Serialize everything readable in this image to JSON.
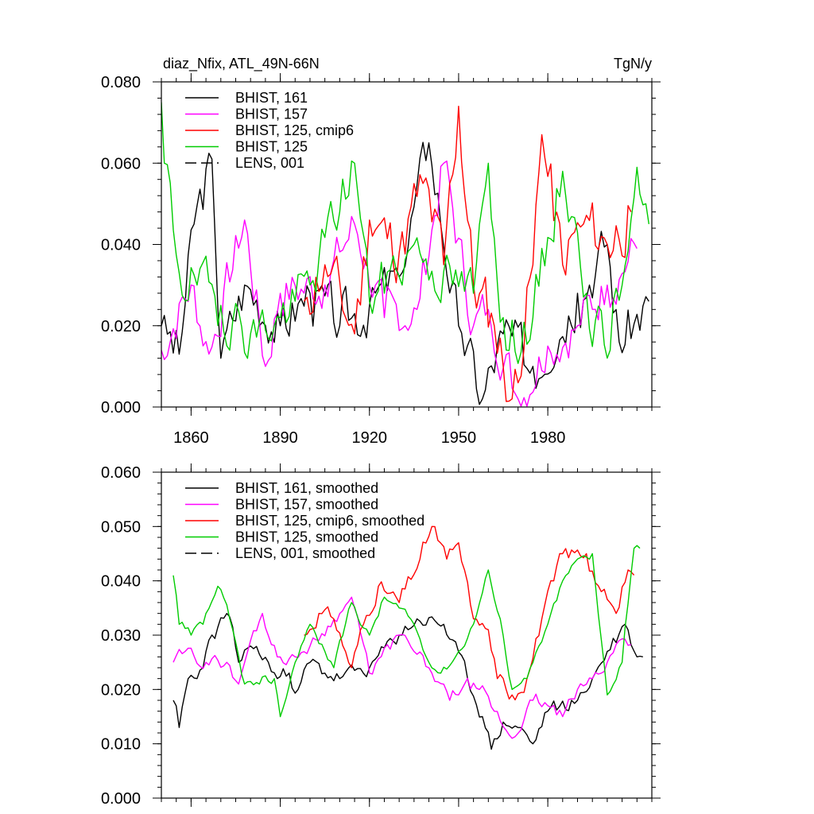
{
  "chart_data": [
    {
      "type": "line",
      "title": "diaz_Nfix, ATL_49N-66N",
      "units": "TgN/y",
      "xlabel": "",
      "ylabel": "",
      "xlim": [
        1850,
        2015
      ],
      "ylim": [
        0.0,
        0.08
      ],
      "x_ticks": [
        1860,
        1890,
        1920,
        1950,
        1980
      ],
      "x_tick_labels": [
        "1860",
        "1890",
        "1920",
        "1950",
        "1980"
      ],
      "y_ticks": [
        0.0,
        0.02,
        0.04,
        0.06,
        0.08
      ],
      "y_tick_labels": [
        "0.000",
        "0.020",
        "0.040",
        "0.060",
        "0.080"
      ],
      "legend_position": "top-left",
      "series": [
        {
          "name": "BHIST, 161",
          "color": "#000000",
          "dash": "solid",
          "x_start": 1850,
          "x_end": 2014,
          "base": 0.022,
          "amplitude": 0.011,
          "seed": 3,
          "anchors": [
            [
              1850,
              0.02
            ],
            [
              1856,
              0.013
            ],
            [
              1861,
              0.045
            ],
            [
              1867,
              0.061
            ],
            [
              1870,
              0.012
            ],
            [
              1878,
              0.03
            ],
            [
              1890,
              0.02
            ],
            [
              1900,
              0.028
            ],
            [
              1910,
              0.02
            ],
            [
              1920,
              0.025
            ],
            [
              1930,
              0.032
            ],
            [
              1940,
              0.065
            ],
            [
              1950,
              0.02
            ],
            [
              1958,
              0.002
            ],
            [
              1965,
              0.018
            ],
            [
              1975,
              0.01
            ],
            [
              1990,
              0.028
            ],
            [
              2000,
              0.04
            ],
            [
              2004,
              0.016
            ],
            [
              2014,
              0.026
            ]
          ]
        },
        {
          "name": "BHIST, 157",
          "color": "#ff00ff",
          "dash": "solid",
          "x_start": 1850,
          "x_end": 2010,
          "base": 0.026,
          "amplitude": 0.01,
          "seed": 7,
          "anchors": [
            [
              1850,
              0.014
            ],
            [
              1860,
              0.03
            ],
            [
              1866,
              0.013
            ],
            [
              1878,
              0.046
            ],
            [
              1885,
              0.01
            ],
            [
              1890,
              0.028
            ],
            [
              1905,
              0.03
            ],
            [
              1915,
              0.045
            ],
            [
              1925,
              0.022
            ],
            [
              1936,
              0.024
            ],
            [
              1945,
              0.06
            ],
            [
              1955,
              0.02
            ],
            [
              1960,
              0.024
            ],
            [
              1970,
              0.002
            ],
            [
              1980,
              0.015
            ],
            [
              1990,
              0.02
            ],
            [
              2000,
              0.03
            ],
            [
              2010,
              0.039
            ]
          ]
        },
        {
          "name": "BHIST, 125, cmip6",
          "color": "#ff0000",
          "dash": "solid",
          "x_start": 1898,
          "x_end": 2008,
          "base": 0.032,
          "amplitude": 0.013,
          "seed": 11,
          "anchors": [
            [
              1898,
              0.026
            ],
            [
              1905,
              0.035
            ],
            [
              1915,
              0.018
            ],
            [
              1920,
              0.046
            ],
            [
              1930,
              0.038
            ],
            [
              1938,
              0.055
            ],
            [
              1945,
              0.035
            ],
            [
              1950,
              0.074
            ],
            [
              1955,
              0.03
            ],
            [
              1962,
              0.02
            ],
            [
              1968,
              0.002
            ],
            [
              1975,
              0.035
            ],
            [
              1978,
              0.067
            ],
            [
              1985,
              0.035
            ],
            [
              1992,
              0.045
            ],
            [
              2000,
              0.04
            ],
            [
              2008,
              0.048
            ]
          ]
        },
        {
          "name": "BHIST, 125",
          "color": "#00cc00",
          "dash": "solid",
          "x_start": 1850,
          "x_end": 2014,
          "base": 0.028,
          "amplitude": 0.011,
          "seed": 19,
          "anchors": [
            [
              1850,
              0.075
            ],
            [
              1851,
              0.06
            ],
            [
              1856,
              0.033
            ],
            [
              1862,
              0.03
            ],
            [
              1870,
              0.025
            ],
            [
              1880,
              0.018
            ],
            [
              1890,
              0.022
            ],
            [
              1900,
              0.03
            ],
            [
              1915,
              0.06
            ],
            [
              1920,
              0.026
            ],
            [
              1935,
              0.04
            ],
            [
              1948,
              0.03
            ],
            [
              1955,
              0.028
            ],
            [
              1960,
              0.06
            ],
            [
              1966,
              0.014
            ],
            [
              1975,
              0.022
            ],
            [
              1985,
              0.058
            ],
            [
              1993,
              0.028
            ],
            [
              2000,
              0.012
            ],
            [
              2010,
              0.059
            ],
            [
              2014,
              0.045
            ]
          ]
        }
      ]
    },
    {
      "type": "line",
      "title": "",
      "xlabel": "",
      "ylabel": "",
      "xlim": [
        1850,
        2015
      ],
      "ylim": [
        0.0,
        0.06
      ],
      "x_ticks": [
        1860,
        1890,
        1920,
        1950,
        1980
      ],
      "x_tick_labels": [],
      "y_ticks": [
        0.0,
        0.01,
        0.02,
        0.03,
        0.04,
        0.05,
        0.06
      ],
      "y_tick_labels": [
        "0.000",
        "0.010",
        "0.020",
        "0.030",
        "0.040",
        "0.050",
        "0.060"
      ],
      "legend_position": "top-left",
      "series": [
        {
          "name": "BHIST, 161, smoothed",
          "color": "#000000",
          "dash": "solid",
          "x_start": 1854,
          "x_end": 2012,
          "base": 0.023,
          "amplitude": 0.0025,
          "seed": 23,
          "anchors": [
            [
              1854,
              0.018
            ],
            [
              1856,
              0.013
            ],
            [
              1859,
              0.022
            ],
            [
              1862,
              0.022
            ],
            [
              1865,
              0.027
            ],
            [
              1872,
              0.034
            ],
            [
              1876,
              0.025
            ],
            [
              1880,
              0.028
            ],
            [
              1886,
              0.025
            ],
            [
              1889,
              0.022
            ],
            [
              1893,
              0.023
            ],
            [
              1896,
              0.02
            ],
            [
              1900,
              0.025
            ],
            [
              1905,
              0.023
            ],
            [
              1910,
              0.022
            ],
            [
              1920,
              0.024
            ],
            [
              1930,
              0.03
            ],
            [
              1936,
              0.033
            ],
            [
              1945,
              0.032
            ],
            [
              1953,
              0.022
            ],
            [
              1958,
              0.015
            ],
            [
              1961,
              0.009
            ],
            [
              1965,
              0.014
            ],
            [
              1970,
              0.013
            ],
            [
              1975,
              0.01
            ],
            [
              1980,
              0.016
            ],
            [
              1990,
              0.018
            ],
            [
              1995,
              0.022
            ],
            [
              2000,
              0.027
            ],
            [
              2006,
              0.032
            ],
            [
              2010,
              0.026
            ],
            [
              2012,
              0.026
            ]
          ]
        },
        {
          "name": "BHIST, 157, smoothed",
          "color": "#ff00ff",
          "dash": "solid",
          "x_start": 1854,
          "x_end": 2008,
          "base": 0.024,
          "amplitude": 0.002,
          "seed": 29,
          "anchors": [
            [
              1854,
              0.025
            ],
            [
              1858,
              0.027
            ],
            [
              1865,
              0.025
            ],
            [
              1872,
              0.025
            ],
            [
              1876,
              0.021
            ],
            [
              1880,
              0.029
            ],
            [
              1884,
              0.034
            ],
            [
              1889,
              0.026
            ],
            [
              1895,
              0.026
            ],
            [
              1900,
              0.028
            ],
            [
              1910,
              0.034
            ],
            [
              1914,
              0.037
            ],
            [
              1920,
              0.023
            ],
            [
              1930,
              0.03
            ],
            [
              1935,
              0.027
            ],
            [
              1940,
              0.024
            ],
            [
              1947,
              0.018
            ],
            [
              1952,
              0.021
            ],
            [
              1957,
              0.02
            ],
            [
              1962,
              0.016
            ],
            [
              1968,
              0.011
            ],
            [
              1975,
              0.018
            ],
            [
              1980,
              0.017
            ],
            [
              1985,
              0.015
            ],
            [
              1990,
              0.02
            ],
            [
              1995,
              0.022
            ],
            [
              2000,
              0.025
            ],
            [
              2004,
              0.029
            ]
          ]
        },
        {
          "name": "BHIST, 125, cmip6, smoothed",
          "color": "#ff0000",
          "dash": "solid",
          "x_start": 1898,
          "x_end": 2009,
          "base": 0.032,
          "amplitude": 0.0025,
          "seed": 31,
          "anchors": [
            [
              1898,
              0.03
            ],
            [
              1903,
              0.034
            ],
            [
              1908,
              0.033
            ],
            [
              1914,
              0.024
            ],
            [
              1918,
              0.032
            ],
            [
              1923,
              0.039
            ],
            [
              1930,
              0.036
            ],
            [
              1937,
              0.044
            ],
            [
              1941,
              0.05
            ],
            [
              1946,
              0.044
            ],
            [
              1950,
              0.047
            ],
            [
              1955,
              0.033
            ],
            [
              1960,
              0.031
            ],
            [
              1963,
              0.022
            ],
            [
              1968,
              0.019
            ],
            [
              1973,
              0.022
            ],
            [
              1978,
              0.033
            ],
            [
              1982,
              0.04
            ],
            [
              1985,
              0.045
            ],
            [
              1993,
              0.045
            ],
            [
              1998,
              0.038
            ],
            [
              2003,
              0.034
            ],
            [
              2007,
              0.042
            ]
          ]
        },
        {
          "name": "BHIST, 125, smoothed",
          "color": "#00cc00",
          "dash": "solid",
          "x_start": 1854,
          "x_end": 2011,
          "base": 0.028,
          "amplitude": 0.0015,
          "seed": 37,
          "anchors": [
            [
              1854,
              0.041
            ],
            [
              1856,
              0.032
            ],
            [
              1860,
              0.03
            ],
            [
              1864,
              0.032
            ],
            [
              1869,
              0.039
            ],
            [
              1873,
              0.033
            ],
            [
              1878,
              0.021
            ],
            [
              1883,
              0.021
            ],
            [
              1888,
              0.022
            ],
            [
              1890,
              0.015
            ],
            [
              1895,
              0.025
            ],
            [
              1900,
              0.032
            ],
            [
              1905,
              0.027
            ],
            [
              1908,
              0.024
            ],
            [
              1914,
              0.036
            ],
            [
              1920,
              0.03
            ],
            [
              1925,
              0.037
            ],
            [
              1930,
              0.035
            ],
            [
              1935,
              0.032
            ],
            [
              1940,
              0.025
            ],
            [
              1944,
              0.023
            ],
            [
              1950,
              0.027
            ],
            [
              1955,
              0.032
            ],
            [
              1960,
              0.042
            ],
            [
              1964,
              0.033
            ],
            [
              1968,
              0.02
            ],
            [
              1973,
              0.022
            ],
            [
              1980,
              0.032
            ],
            [
              1985,
              0.04
            ],
            [
              1990,
              0.044
            ],
            [
              1995,
              0.045
            ],
            [
              2000,
              0.019
            ],
            [
              2005,
              0.025
            ],
            [
              2009,
              0.046
            ],
            [
              2011,
              0.046
            ]
          ]
        }
      ]
    }
  ]
}
